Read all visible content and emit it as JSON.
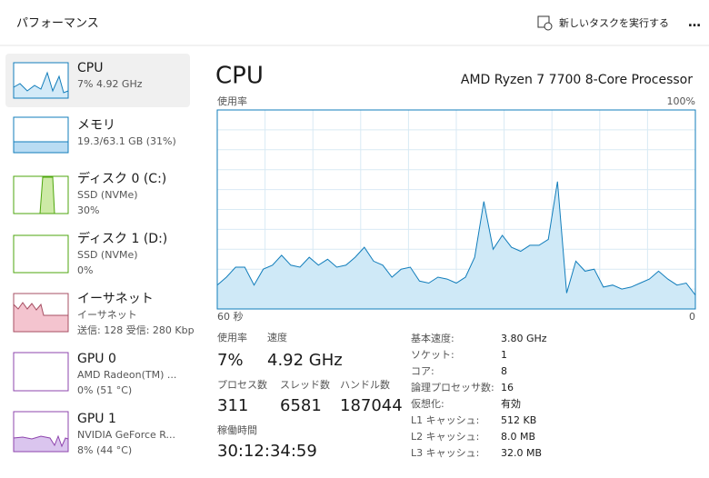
{
  "header": {
    "title": "パフォーマンス",
    "action": "新しいタスクを実行する",
    "more": "…"
  },
  "sidebar": {
    "items": [
      {
        "name": "CPU",
        "lines": [
          "7%  4.92 GHz"
        ]
      },
      {
        "name": "メモリ",
        "lines": [
          "19.3/63.1 GB (31%)"
        ]
      },
      {
        "name": "ディスク 0 (C:)",
        "lines": [
          "SSD (NVMe)",
          "30%"
        ]
      },
      {
        "name": "ディスク 1 (D:)",
        "lines": [
          "SSD (NVMe)",
          "0%"
        ]
      },
      {
        "name": "イーサネット",
        "lines": [
          "イーサネット",
          "送信: 128 受信: 280 Kbp"
        ]
      },
      {
        "name": "GPU 0",
        "lines": [
          "AMD Radeon(TM) ...",
          "0% (51 °C)"
        ]
      },
      {
        "name": "GPU 1",
        "lines": [
          "NVIDIA GeForce R...",
          "8% (44 °C)"
        ]
      }
    ]
  },
  "main": {
    "title": "CPU",
    "processor": "AMD Ryzen 7 7700 8-Core Processor",
    "chart": {
      "type": "area",
      "y_label": "使用率",
      "y_max_label": "100%",
      "x_start_label": "60 秒",
      "x_end_label": "0",
      "ylim": [
        0,
        100
      ],
      "color": "#117dbb",
      "fill": "#cfe9f7",
      "values": [
        12,
        16,
        21,
        21,
        12,
        20,
        22,
        27,
        22,
        21,
        26,
        22,
        25,
        21,
        22,
        26,
        31,
        24,
        22,
        16,
        20,
        21,
        14,
        13,
        16,
        15,
        13,
        16,
        26,
        54,
        30,
        37,
        31,
        29,
        32,
        32,
        35,
        64,
        8,
        24,
        19,
        20,
        11,
        12,
        10,
        11,
        13,
        15,
        19,
        15,
        12,
        13,
        7
      ]
    },
    "stats": [
      {
        "label": "使用率",
        "value": "7%"
      },
      {
        "label": "速度",
        "value": "4.92 GHz"
      },
      {
        "label": "プロセス数",
        "value": "311"
      },
      {
        "label": "スレッド数",
        "value": "6581"
      },
      {
        "label": "ハンドル数",
        "value": "187044"
      },
      {
        "label": "稼働時間",
        "value": "30:12:34:59"
      }
    ],
    "specs": [
      [
        "基本速度:",
        "3.80 GHz"
      ],
      [
        "ソケット:",
        "1"
      ],
      [
        "コア:",
        "8"
      ],
      [
        "論理プロセッサ数:",
        "16"
      ],
      [
        "仮想化:",
        "有効"
      ],
      [
        "L1 キャッシュ:",
        "512 KB"
      ],
      [
        "L2 キャッシュ:",
        "8.0 MB"
      ],
      [
        "L3 キャッシュ:",
        "32.0 MB"
      ]
    ]
  }
}
